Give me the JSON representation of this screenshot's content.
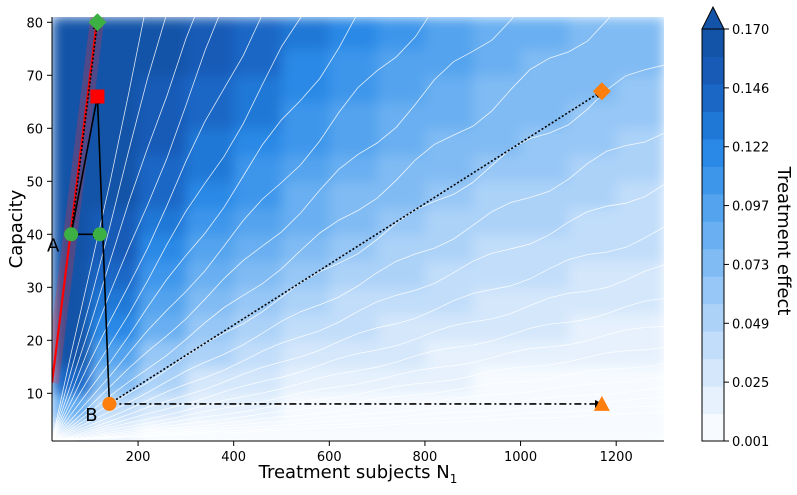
{
  "chart_data": {
    "type": "contour",
    "xlabel": "Treatment subjects N",
    "xlabel_subscript": "1",
    "ylabel": "Capacity",
    "xlim": [
      20,
      1300
    ],
    "ylim": [
      1,
      81
    ],
    "xticks": [
      200,
      400,
      600,
      800,
      1000,
      1200
    ],
    "yticks": [
      10,
      20,
      30,
      40,
      50,
      60,
      70,
      80
    ],
    "colorbar": {
      "label": "Treatment effect",
      "min": 0.001,
      "max": 0.17,
      "extend": "max",
      "tick_labels": [
        "0.001",
        "0.025",
        "0.049",
        "0.073",
        "0.097",
        "0.122",
        "0.146",
        "0.170"
      ],
      "levels": 14,
      "colors": [
        "#f7fbff",
        "#e6f1fd",
        "#d4e7fb",
        "#c1ddfa",
        "#acd2f8",
        "#97c7f6",
        "#80bbf3",
        "#69aff1",
        "#54a3ee",
        "#3e96eb",
        "#2a89e6",
        "#2078d6",
        "#1b67c6",
        "#175bb7",
        "#1354a8"
      ]
    },
    "fill_grid": {
      "rows": [
        1,
        5,
        10,
        15,
        20,
        25,
        30,
        35,
        40,
        45,
        50,
        55,
        60,
        65,
        70,
        75,
        81
      ],
      "cols": [
        20,
        100,
        200,
        300,
        400,
        500,
        600,
        700,
        800,
        900,
        1000,
        1100,
        1200,
        1300
      ],
      "level_index": [
        [
          2,
          1,
          0,
          0,
          0,
          0,
          0,
          0,
          0,
          0,
          0,
          0,
          0,
          0
        ],
        [
          7,
          3,
          2,
          1,
          1,
          0,
          0,
          0,
          0,
          0,
          0,
          0,
          0,
          0
        ],
        [
          12,
          6,
          4,
          2,
          2,
          1,
          1,
          1,
          1,
          0,
          0,
          0,
          0,
          0
        ],
        [
          14,
          8,
          5,
          4,
          3,
          2,
          2,
          2,
          1,
          1,
          1,
          1,
          1,
          1
        ],
        [
          14,
          10,
          7,
          5,
          4,
          3,
          3,
          2,
          2,
          2,
          2,
          1,
          1,
          1
        ],
        [
          14,
          11,
          8,
          6,
          5,
          4,
          3,
          3,
          3,
          2,
          2,
          2,
          2,
          2
        ],
        [
          14,
          12,
          9,
          7,
          6,
          5,
          4,
          4,
          3,
          3,
          3,
          2,
          2,
          2
        ],
        [
          14,
          13,
          10,
          8,
          7,
          6,
          5,
          4,
          4,
          3,
          3,
          3,
          3,
          3
        ],
        [
          14,
          13,
          11,
          9,
          8,
          7,
          6,
          5,
          4,
          4,
          4,
          3,
          3,
          3
        ],
        [
          14,
          14,
          12,
          10,
          9,
          7,
          6,
          6,
          5,
          4,
          4,
          4,
          3,
          3
        ],
        [
          14,
          14,
          12,
          11,
          9,
          8,
          7,
          6,
          6,
          5,
          5,
          4,
          4,
          4
        ],
        [
          14,
          14,
          13,
          11,
          10,
          9,
          8,
          7,
          6,
          6,
          5,
          5,
          4,
          4
        ],
        [
          14,
          14,
          13,
          12,
          11,
          9,
          8,
          7,
          7,
          6,
          6,
          5,
          5,
          5
        ],
        [
          14,
          14,
          13,
          12,
          11,
          10,
          9,
          8,
          7,
          6,
          6,
          6,
          5,
          5
        ],
        [
          14,
          14,
          14,
          13,
          12,
          10,
          9,
          8,
          8,
          7,
          6,
          6,
          6,
          5
        ],
        [
          14,
          14,
          14,
          13,
          12,
          11,
          10,
          9,
          8,
          7,
          7,
          6,
          6,
          6
        ],
        [
          14,
          14,
          14,
          13,
          12,
          11,
          10,
          9,
          9,
          8,
          7,
          7,
          6,
          6
        ]
      ]
    },
    "red_line": [
      [
        20,
        12
      ],
      [
        115,
        81
      ]
    ],
    "markers": [
      {
        "label": "A",
        "shape": "circle",
        "color": "#3cb043",
        "x": 60,
        "y": 40
      },
      {
        "label": "",
        "shape": "circle",
        "color": "#3cb043",
        "x": 120,
        "y": 40
      },
      {
        "label": "",
        "shape": "diamond",
        "color": "#3cb043",
        "x": 115,
        "y": 80
      },
      {
        "label": "",
        "shape": "square",
        "color": "#ff0000",
        "x": 115,
        "y": 66
      },
      {
        "label": "B",
        "shape": "circle",
        "color": "#ff7f0e",
        "x": 140,
        "y": 8
      },
      {
        "label": "",
        "shape": "diamond",
        "color": "#ff7f0e",
        "x": 1170,
        "y": 67
      },
      {
        "label": "",
        "shape": "triangle",
        "color": "#ff7f0e",
        "x": 1170,
        "y": 8
      }
    ],
    "arrows": [
      {
        "from": [
          60,
          40
        ],
        "to": [
          115,
          80
        ],
        "style": "dotted"
      },
      {
        "from": [
          60,
          40
        ],
        "to": [
          115,
          66
        ],
        "style": "solid"
      },
      {
        "from": [
          60,
          40
        ],
        "to": [
          120,
          40
        ],
        "style": "solid"
      },
      {
        "from": [
          140,
          8
        ],
        "to": [
          115,
          66
        ],
        "style": "solid"
      },
      {
        "from": [
          140,
          8
        ],
        "to": [
          1170,
          67
        ],
        "style": "dotted"
      },
      {
        "from": [
          140,
          8
        ],
        "to": [
          1170,
          8
        ],
        "style": "dashdot"
      }
    ]
  }
}
